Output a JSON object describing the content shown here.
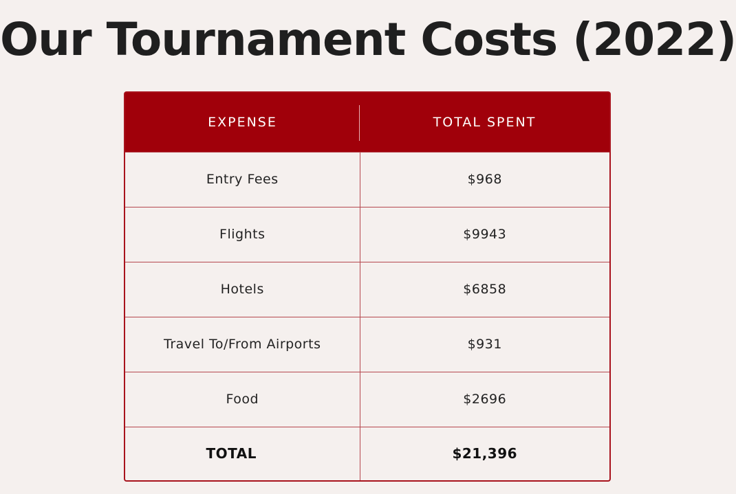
{
  "title": "Our Tournament Costs (2022)",
  "table": {
    "headers": [
      "EXPENSE",
      "TOTAL SPENT"
    ],
    "rows": [
      {
        "expense": "Entry Fees",
        "total": "$968"
      },
      {
        "expense": "Flights",
        "total": "$9943"
      },
      {
        "expense": "Hotels",
        "total": "$6858"
      },
      {
        "expense": "Travel To/From Airports",
        "total": "$931"
      },
      {
        "expense": "Food",
        "total": "$2696"
      }
    ],
    "total_row": {
      "label": "TOTAL",
      "value": "$21,396"
    }
  },
  "colors": {
    "header_bg": "#a0000a",
    "border": "#a8121c",
    "background": "#f5f0ee",
    "text": "#1f1f1f"
  }
}
